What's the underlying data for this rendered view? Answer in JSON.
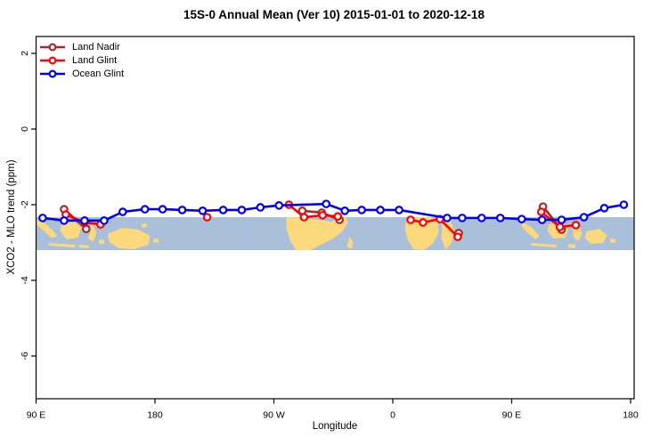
{
  "chart": {
    "title": "15S-0 Annual Mean (Ver 10)   2015-01-01 to 2020-12-18",
    "xlabel": "Longitude",
    "ylabel": "XCO2 - MLO trend (ppm)"
  },
  "chart_data": {
    "type": "line",
    "title": "15S-0 Annual Mean (Ver 10)   2015-01-01 to 2020-12-18",
    "xlabel": "Longitude",
    "ylabel": "XCO2 - MLO trend (ppm)",
    "legend_position": "top-left",
    "grid": false,
    "x_axis": {
      "note": "degrees east of 90E, wrapping eastward around the globe",
      "range_deg": [
        0,
        452
      ],
      "ticks": [
        {
          "pos": 0,
          "label": "90 E"
        },
        {
          "pos": 90,
          "label": "180"
        },
        {
          "pos": 180,
          "label": "90 W"
        },
        {
          "pos": 270,
          "label": "0"
        },
        {
          "pos": 360,
          "label": "90 E"
        },
        {
          "pos": 450,
          "label": "180"
        }
      ]
    },
    "y_axis": {
      "range": [
        -7.15,
        2.45
      ],
      "ticks": [
        {
          "val": 2,
          "label": "2"
        },
        {
          "val": 0,
          "label": "0"
        },
        {
          "val": -2,
          "label": "-2"
        },
        {
          "val": -4,
          "label": "-4"
        },
        {
          "val": -6,
          "label": "-6"
        }
      ]
    },
    "series": [
      {
        "name": "Land Nadir",
        "color": "#a52a2a",
        "segments": [
          [
            [
              21.2,
              -2.12
            ],
            [
              38.0,
              -2.64
            ]
          ],
          [
            [
              201.5,
              -2.16
            ],
            [
              216.3,
              -2.21
            ],
            [
              229.7,
              -2.4
            ]
          ],
          [
            [
              319.9,
              -2.75
            ]
          ],
          [
            [
              383.7,
              -2.05
            ],
            [
              397.8,
              -2.66
            ]
          ]
        ]
      },
      {
        "name": "Land Glint",
        "color": "#ff0000",
        "segments": [
          [
            [
              22.5,
              -2.26
            ],
            [
              36.7,
              -2.47
            ],
            [
              48.8,
              -2.52
            ]
          ],
          [
            [
              129.5,
              -2.33
            ]
          ],
          [
            [
              191.4,
              -2.0
            ],
            [
              202.8,
              -2.33
            ],
            [
              216.9,
              -2.28
            ],
            [
              228.4,
              -2.31
            ]
          ],
          [
            [
              283.5,
              -2.4
            ],
            [
              292.9,
              -2.47
            ],
            [
              305.7,
              -2.38
            ],
            [
              319.2,
              -2.85
            ]
          ],
          [
            [
              382.4,
              -2.19
            ],
            [
              396.5,
              -2.59
            ],
            [
              408.6,
              -2.54
            ]
          ]
        ]
      },
      {
        "name": "Ocean Glint",
        "color": "#0000ee",
        "segments": [
          [
            [
              5.0,
              -2.35
            ],
            [
              21.2,
              -2.42
            ],
            [
              36.7,
              -2.42
            ],
            [
              51.5,
              -2.42
            ],
            [
              65.6,
              -2.19
            ],
            [
              82.4,
              -2.12
            ],
            [
              95.8,
              -2.12
            ],
            [
              110.6,
              -2.14
            ],
            [
              126.1,
              -2.16
            ],
            [
              141.6,
              -2.14
            ],
            [
              155.7,
              -2.14
            ],
            [
              169.8,
              -2.07
            ],
            [
              183.9,
              -2.02
            ],
            [
              219.6,
              -1.98
            ],
            [
              233.7,
              -2.16
            ],
            [
              246.5,
              -2.14
            ],
            [
              260.6,
              -2.14
            ],
            [
              274.8,
              -2.14
            ],
            [
              311.1,
              -2.35
            ],
            [
              322.5,
              -2.35
            ],
            [
              337.3,
              -2.35
            ],
            [
              351.4,
              -2.35
            ],
            [
              367.6,
              -2.38
            ],
            [
              383.0,
              -2.4
            ],
            [
              397.8,
              -2.4
            ],
            [
              414.7,
              -2.33
            ],
            [
              430.1,
              -2.09
            ],
            [
              444.9,
              -2.0
            ]
          ]
        ]
      }
    ],
    "map_band": {
      "description": "15S-0 latitude strip of world map",
      "v_top": -2.33,
      "v_bottom": -3.2,
      "ocean_color": "#a9bfda",
      "land_color": "#fdd97d",
      "land_shapes": [
        [
          [
            0,
            3
          ],
          [
            10,
            7
          ],
          [
            20,
            16
          ],
          [
            24,
            22
          ],
          [
            17,
            23
          ],
          [
            6,
            13
          ],
          [
            0,
            8
          ]
        ],
        [
          [
            14,
            29
          ],
          [
            44,
            31
          ],
          [
            44,
            34
          ],
          [
            14,
            32
          ]
        ],
        [
          [
            48,
            31
          ],
          [
            60,
            32
          ],
          [
            59,
            35
          ],
          [
            48,
            34
          ]
        ],
        [
          [
            29,
            7
          ],
          [
            43,
            5
          ],
          [
            51,
            12
          ],
          [
            47,
            23
          ],
          [
            34,
            25
          ],
          [
            27,
            15
          ]
        ],
        [
          [
            57,
            11
          ],
          [
            64,
            9
          ],
          [
            68,
            17
          ],
          [
            64,
            28
          ],
          [
            58,
            23
          ],
          [
            61,
            17
          ]
        ],
        [
          [
            80,
            19
          ],
          [
            97,
            12
          ],
          [
            115,
            14
          ],
          [
            128,
            21
          ],
          [
            126,
            31
          ],
          [
            110,
            36
          ],
          [
            93,
            35
          ],
          [
            82,
            28
          ]
        ],
        [
          [
            70,
            26
          ],
          [
            76,
            25
          ],
          [
            77,
            30
          ],
          [
            71,
            30
          ]
        ],
        [
          [
            118,
            8
          ],
          [
            124,
            7
          ],
          [
            125,
            11
          ],
          [
            119,
            12
          ]
        ],
        [
          [
            132,
            24
          ],
          [
            138,
            25
          ],
          [
            137,
            29
          ],
          [
            131,
            28
          ]
        ],
        [
          [
            281,
            0
          ],
          [
            300,
            1
          ],
          [
            317,
            3
          ],
          [
            331,
            5
          ],
          [
            341,
            2
          ],
          [
            348,
            0
          ],
          [
            350,
            6
          ],
          [
            344,
            16
          ],
          [
            334,
            24
          ],
          [
            320,
            31
          ],
          [
            308,
            37
          ],
          [
            292,
            37
          ],
          [
            285,
            26
          ],
          [
            281,
            12
          ]
        ],
        [
          [
            352,
            22
          ],
          [
            356,
            28
          ],
          [
            354,
            36
          ],
          [
            349,
            33
          ]
        ],
        [
          [
            416,
            3
          ],
          [
            428,
            0
          ],
          [
            443,
            0
          ],
          [
            451,
            5
          ],
          [
            452,
            18
          ],
          [
            446,
            29
          ],
          [
            436,
            37
          ],
          [
            424,
            36
          ],
          [
            417,
            25
          ],
          [
            414,
            12
          ]
        ],
        [
          [
            456,
            7
          ],
          [
            465,
            4
          ],
          [
            469,
            13
          ],
          [
            467,
            28
          ],
          [
            460,
            37
          ],
          [
            455,
            24
          ]
        ],
        [
          [
            547,
            6
          ],
          [
            557,
            12
          ],
          [
            565,
            21
          ],
          [
            561,
            25
          ],
          [
            550,
            16
          ],
          [
            545,
            10
          ]
        ],
        [
          [
            556,
            29
          ],
          [
            584,
            31
          ],
          [
            584,
            34
          ],
          [
            556,
            32
          ]
        ],
        [
          [
            576,
            8
          ],
          [
            590,
            6
          ],
          [
            598,
            13
          ],
          [
            594,
            23
          ],
          [
            581,
            24
          ],
          [
            574,
            15
          ]
        ],
        [
          [
            603,
            12
          ],
          [
            610,
            10
          ],
          [
            613,
            18
          ],
          [
            609,
            27
          ],
          [
            603,
            22
          ]
        ],
        [
          [
            618,
            16
          ],
          [
            632,
            13
          ],
          [
            641,
            20
          ],
          [
            637,
            29
          ],
          [
            623,
            30
          ],
          [
            616,
            23
          ]
        ],
        [
          [
            645,
            24
          ],
          [
            651,
            25
          ],
          [
            650,
            29
          ],
          [
            644,
            28
          ]
        ],
        [
          [
            598,
            30
          ],
          [
            606,
            31
          ],
          [
            605,
            35
          ],
          [
            597,
            34
          ]
        ]
      ]
    }
  }
}
